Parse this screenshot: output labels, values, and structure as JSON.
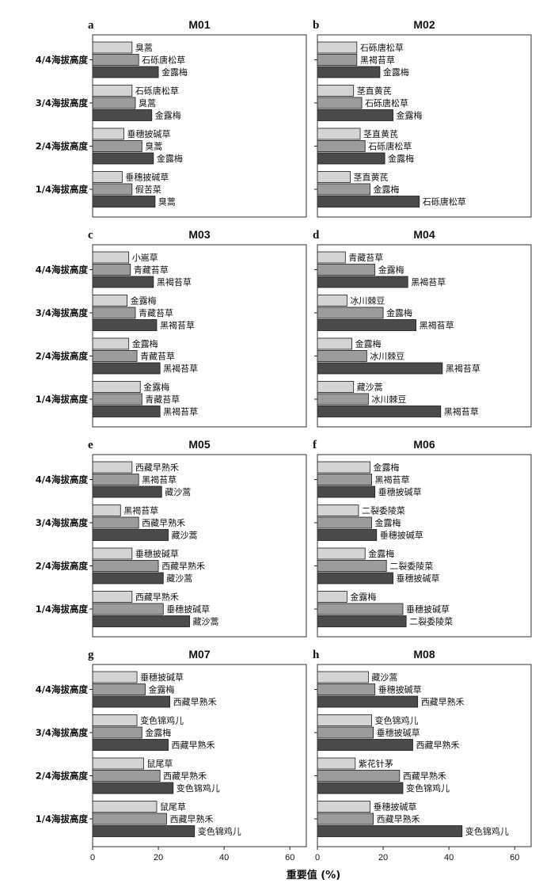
{
  "chart_data": {
    "type": "bar",
    "orientation": "horizontal",
    "xlabel": "重要值 (%)",
    "xlim": [
      0,
      65
    ],
    "xticks": [
      0,
      20,
      40,
      60
    ],
    "grid": false,
    "colors": [
      "#d4d4d4",
      "#9c9c9c",
      "#4a4a4a"
    ],
    "categories": [
      "4/4海拔高度",
      "3/4海拔高度",
      "2/4海拔高度",
      "1/4海拔高度"
    ],
    "panels": [
      {
        "label": "a",
        "title": "M01",
        "groups": [
          {
            "category": "4/4海拔高度",
            "bars": [
              {
                "species": "臭蒿",
                "value": 12
              },
              {
                "species": "石砾唐松草",
                "value": 14
              },
              {
                "species": "金露梅",
                "value": 20
              }
            ]
          },
          {
            "category": "3/4海拔高度",
            "bars": [
              {
                "species": "石砾唐松草",
                "value": 12
              },
              {
                "species": "臭蒿",
                "value": 13
              },
              {
                "species": "金露梅",
                "value": 18
              }
            ]
          },
          {
            "category": "2/4海拔高度",
            "bars": [
              {
                "species": "垂穗披碱草",
                "value": 9.5
              },
              {
                "species": "臭蒿",
                "value": 15
              },
              {
                "species": "金露梅",
                "value": 18.5
              }
            ]
          },
          {
            "category": "1/4海拔高度",
            "bars": [
              {
                "species": "垂穗披碱草",
                "value": 9
              },
              {
                "species": "假苦菜",
                "value": 12
              },
              {
                "species": "臭蒿",
                "value": 19
              }
            ]
          }
        ]
      },
      {
        "label": "b",
        "title": "M02",
        "groups": [
          {
            "category": "4/4海拔高度",
            "bars": [
              {
                "species": "石砾唐松草",
                "value": 12
              },
              {
                "species": "黑褐苔草",
                "value": 12
              },
              {
                "species": "金露梅",
                "value": 19
              }
            ]
          },
          {
            "category": "3/4海拔高度",
            "bars": [
              {
                "species": "茎直黄芪",
                "value": 11
              },
              {
                "species": "石砾唐松草",
                "value": 13.5
              },
              {
                "species": "金露梅",
                "value": 23
              }
            ]
          },
          {
            "category": "2/4海拔高度",
            "bars": [
              {
                "species": "茎直黄芪",
                "value": 13
              },
              {
                "species": "石砾唐松草",
                "value": 14.5
              },
              {
                "species": "金露梅",
                "value": 20.5
              }
            ]
          },
          {
            "category": "1/4海拔高度",
            "bars": [
              {
                "species": "茎直黄芪",
                "value": 10
              },
              {
                "species": "金露梅",
                "value": 16
              },
              {
                "species": "石砾唐松草",
                "value": 31
              }
            ]
          }
        ]
      },
      {
        "label": "c",
        "title": "M03",
        "groups": [
          {
            "category": "4/4海拔高度",
            "bars": [
              {
                "species": "小嵩草",
                "value": 11
              },
              {
                "species": "青藏苔草",
                "value": 11.5
              },
              {
                "species": "黑褐苔草",
                "value": 18.5
              }
            ]
          },
          {
            "category": "3/4海拔高度",
            "bars": [
              {
                "species": "金露梅",
                "value": 10.5
              },
              {
                "species": "青藏苔草",
                "value": 13
              },
              {
                "species": "黑褐苔草",
                "value": 19.5
              }
            ]
          },
          {
            "category": "2/4海拔高度",
            "bars": [
              {
                "species": "金露梅",
                "value": 11
              },
              {
                "species": "青藏苔草",
                "value": 13.5
              },
              {
                "species": "黑褐苔草",
                "value": 20.5
              }
            ]
          },
          {
            "category": "1/4海拔高度",
            "bars": [
              {
                "species": "金露梅",
                "value": 14.5
              },
              {
                "species": "青藏苔草",
                "value": 15
              },
              {
                "species": "黑褐苔草",
                "value": 20.5
              }
            ]
          }
        ]
      },
      {
        "label": "d",
        "title": "M04",
        "groups": [
          {
            "category": "4/4海拔高度",
            "bars": [
              {
                "species": "青藏苔草",
                "value": 8.5
              },
              {
                "species": "金露梅",
                "value": 17.5
              },
              {
                "species": "黑褐苔草",
                "value": 27.5
              }
            ]
          },
          {
            "category": "3/4海拔高度",
            "bars": [
              {
                "species": "冰川棘豆",
                "value": 9
              },
              {
                "species": "金露梅",
                "value": 20
              },
              {
                "species": "黑褐苔草",
                "value": 30
              }
            ]
          },
          {
            "category": "2/4海拔高度",
            "bars": [
              {
                "species": "金露梅",
                "value": 10.5
              },
              {
                "species": "冰川棘豆",
                "value": 15
              },
              {
                "species": "黑褐苔草",
                "value": 38
              }
            ]
          },
          {
            "category": "1/4海拔高度",
            "bars": [
              {
                "species": "藏沙蒿",
                "value": 11
              },
              {
                "species": "冰川棘豆",
                "value": 15.5
              },
              {
                "species": "黑褐苔草",
                "value": 37.5
              }
            ]
          }
        ]
      },
      {
        "label": "e",
        "title": "M05",
        "groups": [
          {
            "category": "4/4海拔高度",
            "bars": [
              {
                "species": "西藏早熟禾",
                "value": 12
              },
              {
                "species": "黑褐苔草",
                "value": 14
              },
              {
                "species": "藏沙蒿",
                "value": 21
              }
            ]
          },
          {
            "category": "3/4海拔高度",
            "bars": [
              {
                "species": "黑褐苔草",
                "value": 8.5
              },
              {
                "species": "西藏早熟禾",
                "value": 14
              },
              {
                "species": "藏沙蒿",
                "value": 23
              }
            ]
          },
          {
            "category": "2/4海拔高度",
            "bars": [
              {
                "species": "垂穗披碱草",
                "value": 12
              },
              {
                "species": "西藏早熟禾",
                "value": 20
              },
              {
                "species": "藏沙蒿",
                "value": 21.5
              }
            ]
          },
          {
            "category": "1/4海拔高度",
            "bars": [
              {
                "species": "西藏早熟禾",
                "value": 12
              },
              {
                "species": "垂穗披碱草",
                "value": 21.5
              },
              {
                "species": "藏沙蒿",
                "value": 29.5
              }
            ]
          }
        ]
      },
      {
        "label": "f",
        "title": "M06",
        "groups": [
          {
            "category": "4/4海拔高度",
            "bars": [
              {
                "species": "金露梅",
                "value": 16
              },
              {
                "species": "黑褐苔草",
                "value": 16.5
              },
              {
                "species": "垂穗披碱草",
                "value": 17.5
              }
            ]
          },
          {
            "category": "3/4海拔高度",
            "bars": [
              {
                "species": "二裂委陵菜",
                "value": 12.5
              },
              {
                "species": "金露梅",
                "value": 16.5
              },
              {
                "species": "垂穗披碱草",
                "value": 18
              }
            ]
          },
          {
            "category": "2/4海拔高度",
            "bars": [
              {
                "species": "金露梅",
                "value": 14.5
              },
              {
                "species": "二裂委陵菜",
                "value": 21
              },
              {
                "species": "垂穗披碱草",
                "value": 23
              }
            ]
          },
          {
            "category": "1/4海拔高度",
            "bars": [
              {
                "species": "金露梅",
                "value": 9
              },
              {
                "species": "垂穗披碱草",
                "value": 26
              },
              {
                "species": "二裂委陵菜",
                "value": 27
              }
            ]
          }
        ]
      },
      {
        "label": "g",
        "title": "M07",
        "groups": [
          {
            "category": "4/4海拔高度",
            "bars": [
              {
                "species": "垂穗披碱草",
                "value": 13.5
              },
              {
                "species": "金露梅",
                "value": 16
              },
              {
                "species": "西藏早熟禾",
                "value": 23.5
              }
            ]
          },
          {
            "category": "3/4海拔高度",
            "bars": [
              {
                "species": "变色锦鸡儿",
                "value": 13.5
              },
              {
                "species": "金露梅",
                "value": 15
              },
              {
                "species": "西藏早熟禾",
                "value": 23
              }
            ]
          },
          {
            "category": "2/4海拔高度",
            "bars": [
              {
                "species": "鼠尾草",
                "value": 15.5
              },
              {
                "species": "西藏早熟禾",
                "value": 20.5
              },
              {
                "species": "变色锦鸡儿",
                "value": 24.5
              }
            ]
          },
          {
            "category": "1/4海拔高度",
            "bars": [
              {
                "species": "鼠尾草",
                "value": 19.5
              },
              {
                "species": "西藏早熟禾",
                "value": 22.5
              },
              {
                "species": "变色锦鸡儿",
                "value": 31
              }
            ]
          }
        ]
      },
      {
        "label": "h",
        "title": "M08",
        "groups": [
          {
            "category": "4/4海拔高度",
            "bars": [
              {
                "species": "藏沙蒿",
                "value": 15.5
              },
              {
                "species": "垂穗披碱草",
                "value": 17.5
              },
              {
                "species": "西藏早熟禾",
                "value": 30.5
              }
            ]
          },
          {
            "category": "3/4海拔高度",
            "bars": [
              {
                "species": "变色锦鸡儿",
                "value": 16.5
              },
              {
                "species": "垂穗披碱草",
                "value": 17
              },
              {
                "species": "西藏早熟禾",
                "value": 29
              }
            ]
          },
          {
            "category": "2/4海拔高度",
            "bars": [
              {
                "species": "紫花针茅",
                "value": 11.5
              },
              {
                "species": "西藏早熟禾",
                "value": 25
              },
              {
                "species": "变色锦鸡儿",
                "value": 26
              }
            ]
          },
          {
            "category": "1/4海拔高度",
            "bars": [
              {
                "species": "垂穗披碱草",
                "value": 16
              },
              {
                "species": "西藏早熟禾",
                "value": 17
              },
              {
                "species": "变色锦鸡儿",
                "value": 44
              }
            ]
          }
        ]
      }
    ]
  }
}
